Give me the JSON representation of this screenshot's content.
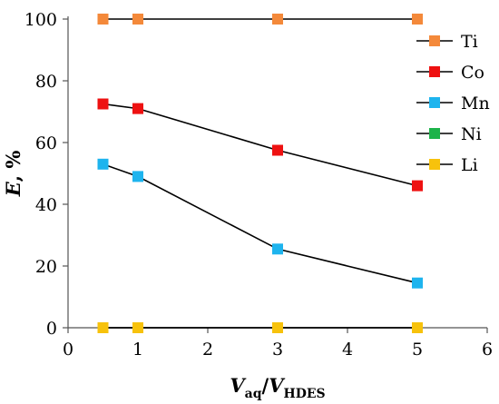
{
  "chart_data": {
    "type": "line",
    "xlabel": {
      "main": "V",
      "sub1": "aq",
      "sep": "/",
      "main2": "V",
      "sub2": "HDES"
    },
    "ylabel": {
      "main": "E",
      "rest": ", %"
    },
    "xlim": [
      0,
      6
    ],
    "ylim": [
      0,
      100
    ],
    "xticks": [
      "0",
      "1",
      "2",
      "3",
      "4",
      "5",
      "6"
    ],
    "yticks": [
      "0",
      "20",
      "40",
      "60",
      "80",
      "100"
    ],
    "grid": false,
    "legend_position": "right",
    "series": [
      {
        "name": "Ti",
        "color": "#F4893A",
        "x": [
          0.5,
          1,
          3,
          5
        ],
        "values": [
          100,
          100,
          100,
          100
        ]
      },
      {
        "name": "Co",
        "color": "#EE1111",
        "x": [
          0.5,
          1,
          3,
          5
        ],
        "values": [
          72.5,
          71,
          57.5,
          46
        ]
      },
      {
        "name": "Mn",
        "color": "#1EB4EE",
        "x": [
          0.5,
          1,
          3,
          5
        ],
        "values": [
          53,
          49,
          25.5,
          14.5
        ]
      },
      {
        "name": "Ni",
        "color": "#1DB34A",
        "x": [
          0.5,
          1,
          3,
          5
        ],
        "values": [
          0,
          0,
          0,
          0
        ]
      },
      {
        "name": "Li",
        "color": "#F7C20C",
        "x": [
          0.5,
          1,
          3,
          5
        ],
        "values": [
          0,
          0,
          0,
          0
        ]
      }
    ],
    "marker": "square",
    "line_color": "#000000"
  }
}
